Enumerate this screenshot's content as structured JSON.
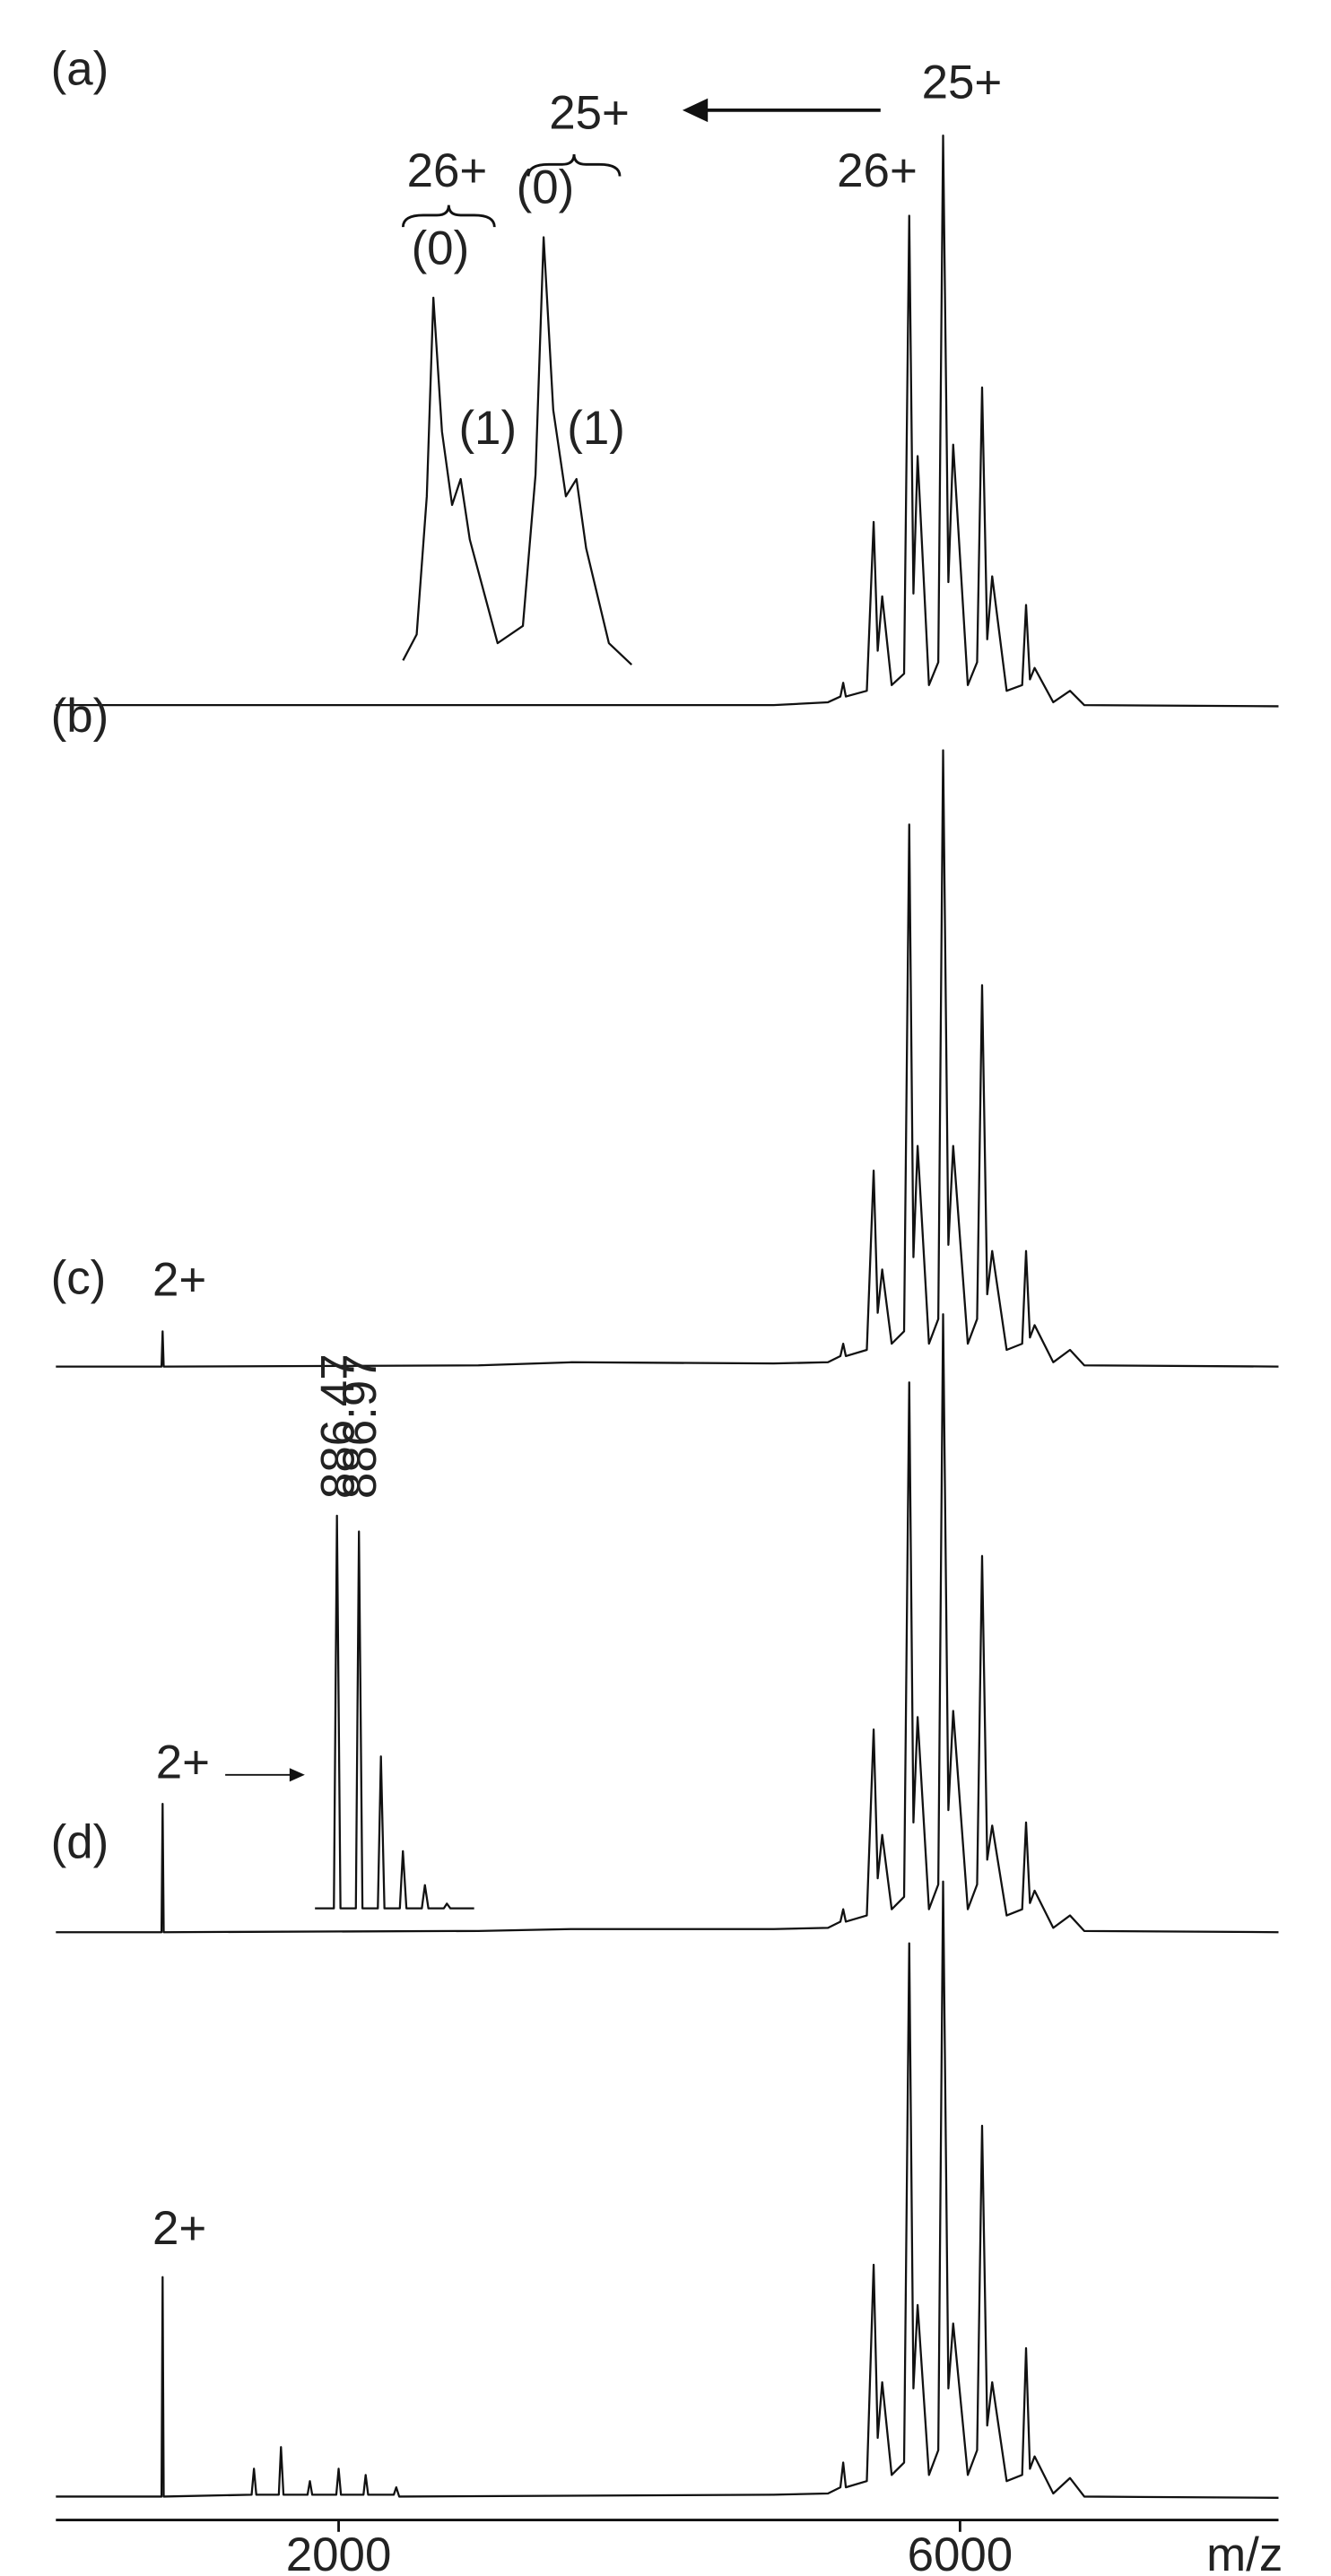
{
  "chart_data": [
    {
      "type": "line",
      "label": "(a)",
      "xlim": [
        180,
        8050
      ],
      "ylim": [
        0,
        100
      ],
      "x": [
        180,
        4800,
        5150,
        5230,
        5248,
        5265,
        5400,
        5444,
        5470,
        5499,
        5560,
        5640,
        5673,
        5700,
        5727,
        5800,
        5860,
        5891,
        5925,
        5956,
        6050,
        6110,
        6142,
        6175,
        6207,
        6300,
        6400,
        6425,
        6450,
        6480,
        6600,
        6708,
        6800,
        8050
      ],
      "values": [
        0.5,
        0.5,
        1,
        2,
        4.4,
        2,
        3,
        32.5,
        10,
        19.5,
        4,
        6,
        86,
        20,
        44,
        4,
        8,
        100,
        22,
        46,
        4,
        8,
        56,
        12,
        23,
        3,
        4,
        18,
        5,
        7,
        1,
        3,
        0.5,
        0.3
      ],
      "annotations": [
        "26+",
        "(0)",
        "(1)",
        "25+",
        "(0)",
        "(1)",
        "25+",
        "26+"
      ],
      "inset": {
        "xlim": [
          5613,
          6065
        ],
        "ylim": [
          0,
          100
        ],
        "x": [
          5613,
          5640,
          5660,
          5673,
          5690,
          5710,
          5727,
          5745,
          5800,
          5850,
          5875,
          5891,
          5910,
          5935,
          5956,
          5975,
          6020,
          6065
        ],
        "values": [
          2,
          8,
          40,
          86,
          55,
          38,
          44,
          30,
          6,
          10,
          45,
          100,
          60,
          40,
          44,
          28,
          6,
          1
        ]
      }
    },
    {
      "type": "line",
      "label": "(b)",
      "xlim": [
        180,
        8050
      ],
      "ylim": [
        0,
        100
      ],
      "x": [
        180,
        860,
        867,
        874,
        2900,
        3500,
        4800,
        5150,
        5230,
        5248,
        5265,
        5400,
        5444,
        5470,
        5499,
        5560,
        5640,
        5673,
        5700,
        5727,
        5800,
        5860,
        5891,
        5925,
        5956,
        6050,
        6110,
        6142,
        6175,
        6207,
        6300,
        6400,
        6425,
        6450,
        6480,
        6600,
        6708,
        6800,
        8050
      ],
      "values": [
        0.3,
        0.3,
        6,
        0.3,
        0.5,
        1,
        0.8,
        1,
        2,
        4,
        2,
        3,
        32,
        9,
        16,
        4,
        6,
        88,
        18,
        36,
        4,
        8,
        100,
        20,
        36,
        4,
        8,
        62,
        12,
        19,
        3,
        4,
        19,
        5,
        7,
        1,
        3,
        0.5,
        0.3
      ],
      "annotations": [
        "2+"
      ]
    },
    {
      "type": "line",
      "label": "(c)",
      "xlim": [
        180,
        8050
      ],
      "ylim": [
        0,
        100
      ],
      "x": [
        180,
        860,
        867,
        874,
        2900,
        3500,
        4800,
        5150,
        5230,
        5248,
        5265,
        5400,
        5444,
        5470,
        5499,
        5560,
        5640,
        5673,
        5700,
        5727,
        5800,
        5860,
        5891,
        5925,
        5956,
        6050,
        6110,
        6142,
        6175,
        6207,
        6300,
        6400,
        6425,
        6450,
        6480,
        6600,
        6708,
        6800,
        8050
      ],
      "values": [
        0.3,
        0.3,
        21,
        0.3,
        0.5,
        0.8,
        0.8,
        1,
        2,
        4,
        2,
        3,
        33,
        9,
        16,
        4,
        6,
        89,
        18,
        35,
        4,
        8,
        100,
        20,
        36,
        4,
        8,
        61,
        12,
        17.5,
        3,
        4,
        18,
        5,
        7,
        1,
        3,
        0.5,
        0.3
      ],
      "annotations": [
        "2+"
      ],
      "inset": {
        "xlim": [
          885.97,
          889.59
        ],
        "ylim": [
          0,
          100
        ],
        "x": [
          885.97,
          886.4,
          886.47,
          886.55,
          886.9,
          886.97,
          887.05,
          887.4,
          887.47,
          887.55,
          887.9,
          887.97,
          888.05,
          888.4,
          888.47,
          888.55,
          888.9,
          888.97,
          889.05,
          889.59
        ],
        "values": [
          0.5,
          0.5,
          100,
          0.5,
          0.5,
          96,
          0.5,
          0.5,
          39,
          0.5,
          0.5,
          15,
          0.5,
          0.5,
          6.4,
          0.5,
          0.5,
          1.7,
          0.5,
          0.5
        ],
        "annotations": [
          "886.47",
          "886.97"
        ]
      }
    },
    {
      "type": "line",
      "label": "(d)",
      "xlim": [
        180,
        8050
      ],
      "ylim": [
        0,
        100
      ],
      "xticks": [
        2000,
        6000
      ],
      "xlabel": "m/z",
      "x": [
        180,
        860,
        867,
        874,
        1440,
        1455,
        1470,
        1615,
        1629,
        1645,
        1800,
        1815,
        1830,
        1985,
        2000,
        2015,
        2160,
        2174,
        2190,
        2355,
        2371,
        2390,
        4800,
        5150,
        5230,
        5248,
        5265,
        5400,
        5444,
        5470,
        5499,
        5560,
        5640,
        5673,
        5700,
        5727,
        5800,
        5860,
        5891,
        5925,
        5956,
        6050,
        6110,
        6142,
        6175,
        6207,
        6300,
        6400,
        6425,
        6450,
        6480,
        6600,
        6708,
        6800,
        8050
      ],
      "values": [
        0.5,
        0.5,
        36,
        0.5,
        0.8,
        5,
        0.8,
        0.8,
        8.5,
        0.8,
        0.8,
        3,
        0.8,
        0.8,
        5,
        0.8,
        0.8,
        4,
        0.8,
        0.8,
        2,
        0.5,
        0.8,
        1,
        2,
        6,
        2,
        3,
        38,
        10,
        19,
        4,
        6,
        90,
        18,
        31.5,
        4,
        8,
        100,
        18,
        28.5,
        4,
        8,
        60.5,
        12,
        19,
        3,
        4,
        24.5,
        5,
        7,
        1,
        3.5,
        0.5,
        0.3
      ],
      "annotations": [
        "2+"
      ]
    }
  ]
}
